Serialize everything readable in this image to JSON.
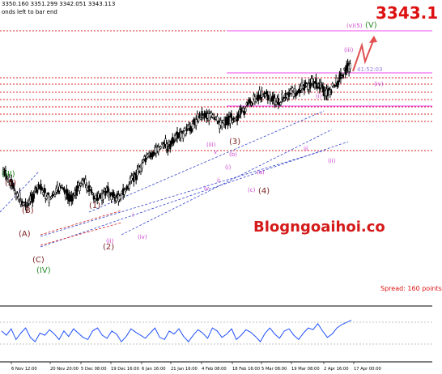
{
  "header": {
    "ohlc": "3350.160 3351.299 3342.051 3343.113",
    "bar_timer": "onds left to bar end"
  },
  "price_tag": "3343.1",
  "watermark": "Blogngoaihoi.co",
  "spread": "Spread: 160 points",
  "countdown": "41:52:03",
  "colors": {
    "price_tag": "#dd1111",
    "watermark": "#d41a1a",
    "candles": "#000000",
    "channel": "#3344cc",
    "level_lines": "#dd2222",
    "fib_lines": "#ee44ee",
    "wave_label": "#cc44cc",
    "wave_label_major": "#7a1f1f",
    "wave_label_cycle": "#2a8a2a",
    "arrow": "#e05050",
    "oscillator": "#1f4fff",
    "spread": "#dd1111"
  },
  "x_axis_labels": [
    "6 Nov 12:00",
    "20 Nov 20:00",
    "5 Dec 08:00",
    "19 Dec 16:00",
    "6 Jan 16:00",
    "21 Jan 16:00",
    "4 Feb 08:00",
    "18 Feb 16:00",
    "5 Mar 08:00",
    "19 Mar 08:00",
    "2 Apr 16:00",
    "17 Apr 00:00"
  ],
  "wave_labels": [
    {
      "text": "(III)",
      "tier": "cycle"
    },
    {
      "text": "(5)",
      "tier": "major"
    },
    {
      "text": "(B)",
      "tier": "major"
    },
    {
      "text": "(A)",
      "tier": "major"
    },
    {
      "text": "(C)",
      "tier": "major"
    },
    {
      "text": "(IV)",
      "tier": "cycle"
    },
    {
      "text": "(1)",
      "tier": "major"
    },
    {
      "text": "(2)",
      "tier": "major"
    },
    {
      "text": "(3)",
      "tier": "major"
    },
    {
      "text": "(4)",
      "tier": "major"
    },
    {
      "text": "(v)(5)",
      "tier": "minor"
    },
    {
      "text": "(V)",
      "tier": "cycle"
    },
    {
      "text": "(iii)",
      "tier": "minor"
    },
    {
      "text": "(iv)",
      "tier": "minor"
    },
    {
      "text": "(ii)",
      "tier": "minor"
    },
    {
      "text": "(i)",
      "tier": "minor"
    },
    {
      "text": "(a)",
      "tier": "minor"
    },
    {
      "text": "(b)",
      "tier": "minor"
    },
    {
      "text": "(c)",
      "tier": "minor"
    },
    {
      "text": "(iii)",
      "tier": "minor"
    },
    {
      "text": "(i)",
      "tier": "minor"
    },
    {
      "text": "iv",
      "tier": "minor"
    },
    {
      "text": "ii",
      "tier": "minor"
    },
    {
      "text": "iii",
      "tier": "minor"
    },
    {
      "text": "v",
      "tier": "minor"
    },
    {
      "text": "i",
      "tier": "minor"
    },
    {
      "text": "(iv)",
      "tier": "minor"
    },
    {
      "text": "(ii)",
      "tier": "minor"
    }
  ],
  "chart_data": [
    {
      "type": "candlestick",
      "instrument_price_last": 3343.113,
      "x_tick_labels": [
        "6 Nov 12:00",
        "20 Nov 20:00",
        "5 Dec 08:00",
        "19 Dec 16:00",
        "6 Jan 16:00",
        "21 Jan 16:00",
        "4 Feb 08:00",
        "18 Feb 16:00",
        "5 Mar 08:00",
        "19 Mar 08:00",
        "2 Apr 16:00",
        "17 Apr 00:00"
      ],
      "close_path": [
        0.58,
        0.62,
        0.66,
        0.7,
        0.74,
        0.76,
        0.72,
        0.68,
        0.66,
        0.7,
        0.72,
        0.7,
        0.66,
        0.68,
        0.72,
        0.7,
        0.66,
        0.62,
        0.66,
        0.7,
        0.73,
        0.7,
        0.68,
        0.7,
        0.72,
        0.7,
        0.68,
        0.64,
        0.6,
        0.56,
        0.52,
        0.5,
        0.48,
        0.45,
        0.43,
        0.44,
        0.42,
        0.4,
        0.38,
        0.36,
        0.34,
        0.3,
        0.28,
        0.27,
        0.28,
        0.3,
        0.32,
        0.31,
        0.3,
        0.29,
        0.28,
        0.26,
        0.22,
        0.2,
        0.18,
        0.16,
        0.17,
        0.19,
        0.21,
        0.2,
        0.18,
        0.16,
        0.15,
        0.14,
        0.13,
        0.12,
        0.1,
        0.12,
        0.14,
        0.16,
        0.13,
        0.1,
        0.06,
        0.03,
        0.0
      ],
      "oscillator": [
        0.55,
        0.45,
        0.6,
        0.35,
        0.5,
        0.62,
        0.4,
        0.3,
        0.5,
        0.45,
        0.58,
        0.48,
        0.35,
        0.55,
        0.42,
        0.6,
        0.5,
        0.4,
        0.35,
        0.55,
        0.62,
        0.45,
        0.38,
        0.55,
        0.48,
        0.3,
        0.42,
        0.6,
        0.52,
        0.45,
        0.38,
        0.5,
        0.62,
        0.4,
        0.35,
        0.55,
        0.48,
        0.6,
        0.42,
        0.3,
        0.45,
        0.58,
        0.5,
        0.38,
        0.62,
        0.55,
        0.4,
        0.48,
        0.6,
        0.35,
        0.45,
        0.58,
        0.52,
        0.42,
        0.3,
        0.5,
        0.62,
        0.48,
        0.38,
        0.55,
        0.6,
        0.45,
        0.35,
        0.5,
        0.62,
        0.58,
        0.72,
        0.55,
        0.4,
        0.48,
        0.62,
        0.7,
        0.75,
        0.8
      ]
    }
  ]
}
